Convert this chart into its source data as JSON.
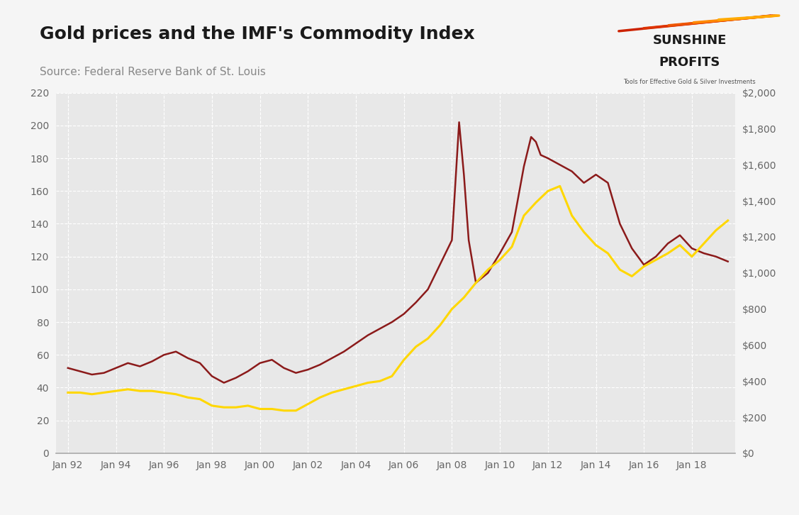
{
  "title": "Gold prices and the IMF's Commodity Index",
  "source": "Source: Federal Reserve Bank of St. Louis",
  "background_color": "#f5f5f5",
  "plot_bg_color": "#e8e8e8",
  "grid_color": "#ffffff",
  "title_color": "#1a1a1a",
  "source_color": "#888888",
  "commodity_color": "#8b1a1a",
  "gold_color": "#FFD700",
  "left_ylim": [
    0,
    220
  ],
  "right_ylim": [
    0,
    2000
  ],
  "left_yticks": [
    0,
    20,
    40,
    60,
    80,
    100,
    120,
    140,
    160,
    180,
    200,
    220
  ],
  "right_yticks": [
    0,
    200,
    400,
    600,
    800,
    1000,
    1200,
    1400,
    1600,
    1800,
    2000
  ],
  "xtick_labels": [
    "Jan 92",
    "Jan 94",
    "Jan 96",
    "Jan 98",
    "Jan 00",
    "Jan 02",
    "Jan 04",
    "Jan 06",
    "Jan 08",
    "Jan 10",
    "Jan 12",
    "Jan 14",
    "Jan 16",
    "Jan 18"
  ],
  "xtick_years": [
    1992,
    1994,
    1996,
    1998,
    2000,
    2002,
    2004,
    2006,
    2008,
    2010,
    2012,
    2014,
    2016,
    2018
  ],
  "commodity_data": {
    "years": [
      1992,
      1993,
      1994,
      1995,
      1996,
      1997,
      1998,
      1999,
      2000,
      2001,
      2002,
      2003,
      2004,
      2005,
      2006,
      2007,
      2008,
      2009,
      2010,
      2011,
      2012,
      2013,
      2014,
      2015,
      2016,
      2017,
      2018,
      2019,
      2020
    ],
    "values": [
      52,
      48,
      50,
      53,
      57,
      56,
      47,
      48,
      54,
      51,
      52,
      57,
      65,
      72,
      82,
      100,
      202,
      105,
      130,
      191,
      185,
      170,
      175,
      130,
      115,
      130,
      125,
      120,
      118
    ]
  },
  "gold_data": {
    "years": [
      1992,
      1993,
      1994,
      1995,
      1996,
      1997,
      1998,
      1999,
      2000,
      2001,
      2002,
      2003,
      2004,
      2005,
      2006,
      2007,
      2008,
      2009,
      2010,
      2011,
      2012,
      2013,
      2014,
      2015,
      2016,
      2017,
      2018,
      2019,
      2020
    ],
    "values": [
      37,
      36,
      38,
      38,
      37,
      33,
      29,
      29,
      27,
      26,
      31,
      36,
      40,
      44,
      60,
      70,
      88,
      104,
      118,
      145,
      163,
      138,
      123,
      108,
      116,
      126,
      120,
      136,
      165
    ]
  }
}
